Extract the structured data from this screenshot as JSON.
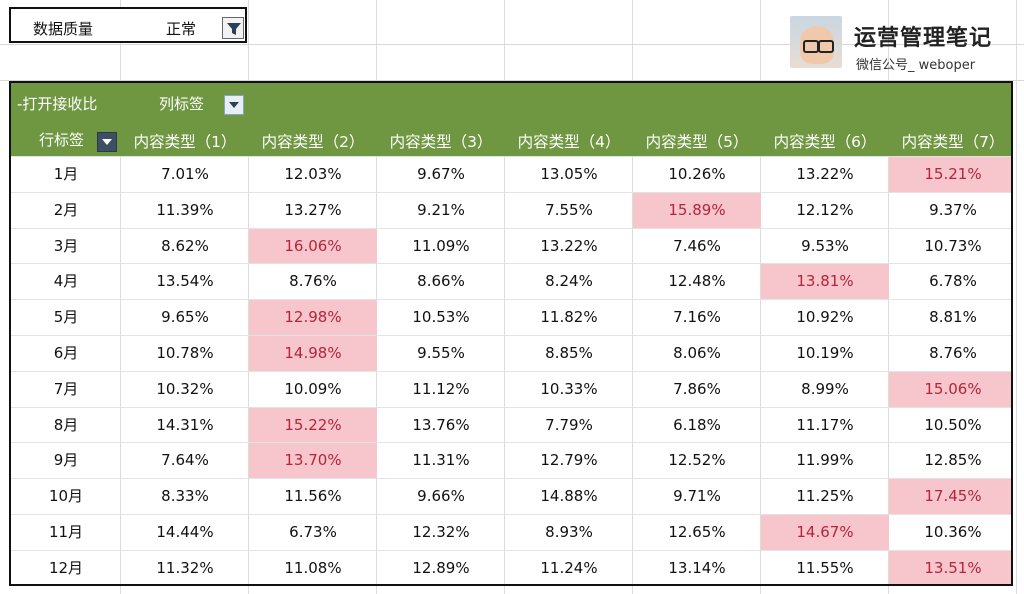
{
  "filter": {
    "label": "数据质量",
    "value": "正常"
  },
  "logo": {
    "title": "运营管理笔记",
    "subtitle": "微信公号_ weboper"
  },
  "pivot": {
    "collapse_label": "-打开接收比",
    "column_labels_title": "列标签",
    "row_labels_title": "行标签",
    "columns": [
      "内容类型（1）",
      "内容类型（2）",
      "内容类型（3）",
      "内容类型（4）",
      "内容类型（5）",
      "内容类型（6）",
      "内容类型（7）"
    ],
    "rows": [
      {
        "label": "1月",
        "values": [
          "7.01%",
          "12.03%",
          "9.67%",
          "13.05%",
          "10.26%",
          "13.22%",
          "15.21%"
        ],
        "highlight": [
          6
        ]
      },
      {
        "label": "2月",
        "values": [
          "11.39%",
          "13.27%",
          "9.21%",
          "7.55%",
          "15.89%",
          "12.12%",
          "9.37%"
        ],
        "highlight": [
          4
        ]
      },
      {
        "label": "3月",
        "values": [
          "8.62%",
          "16.06%",
          "11.09%",
          "13.22%",
          "7.46%",
          "9.53%",
          "10.73%"
        ],
        "highlight": [
          1
        ]
      },
      {
        "label": "4月",
        "values": [
          "13.54%",
          "8.76%",
          "8.66%",
          "8.24%",
          "12.48%",
          "13.81%",
          "6.78%"
        ],
        "highlight": [
          5
        ]
      },
      {
        "label": "5月",
        "values": [
          "9.65%",
          "12.98%",
          "10.53%",
          "11.82%",
          "7.16%",
          "10.92%",
          "8.81%"
        ],
        "highlight": [
          1
        ]
      },
      {
        "label": "6月",
        "values": [
          "10.78%",
          "14.98%",
          "9.55%",
          "8.85%",
          "8.06%",
          "10.19%",
          "8.76%"
        ],
        "highlight": [
          1
        ]
      },
      {
        "label": "7月",
        "values": [
          "10.32%",
          "10.09%",
          "11.12%",
          "10.33%",
          "7.86%",
          "8.99%",
          "15.06%"
        ],
        "highlight": [
          6
        ]
      },
      {
        "label": "8月",
        "values": [
          "14.31%",
          "15.22%",
          "13.76%",
          "7.79%",
          "6.18%",
          "11.17%",
          "10.50%"
        ],
        "highlight": [
          1
        ]
      },
      {
        "label": "9月",
        "values": [
          "7.64%",
          "13.70%",
          "11.31%",
          "12.79%",
          "12.52%",
          "11.99%",
          "12.85%"
        ],
        "highlight": [
          1
        ]
      },
      {
        "label": "10月",
        "values": [
          "8.33%",
          "11.56%",
          "9.66%",
          "14.88%",
          "9.71%",
          "11.25%",
          "17.45%"
        ],
        "highlight": [
          6
        ]
      },
      {
        "label": "11月",
        "values": [
          "14.44%",
          "6.73%",
          "12.32%",
          "8.93%",
          "12.65%",
          "14.67%",
          "10.36%"
        ],
        "highlight": [
          5
        ]
      },
      {
        "label": "12月",
        "values": [
          "11.32%",
          "11.08%",
          "12.89%",
          "11.24%",
          "13.14%",
          "11.55%",
          "13.51%"
        ],
        "highlight": [
          6
        ]
      }
    ]
  },
  "colors": {
    "header_green": "#6f9640",
    "highlight_bg": "#f7c5cc",
    "highlight_text": "#b3263a"
  }
}
